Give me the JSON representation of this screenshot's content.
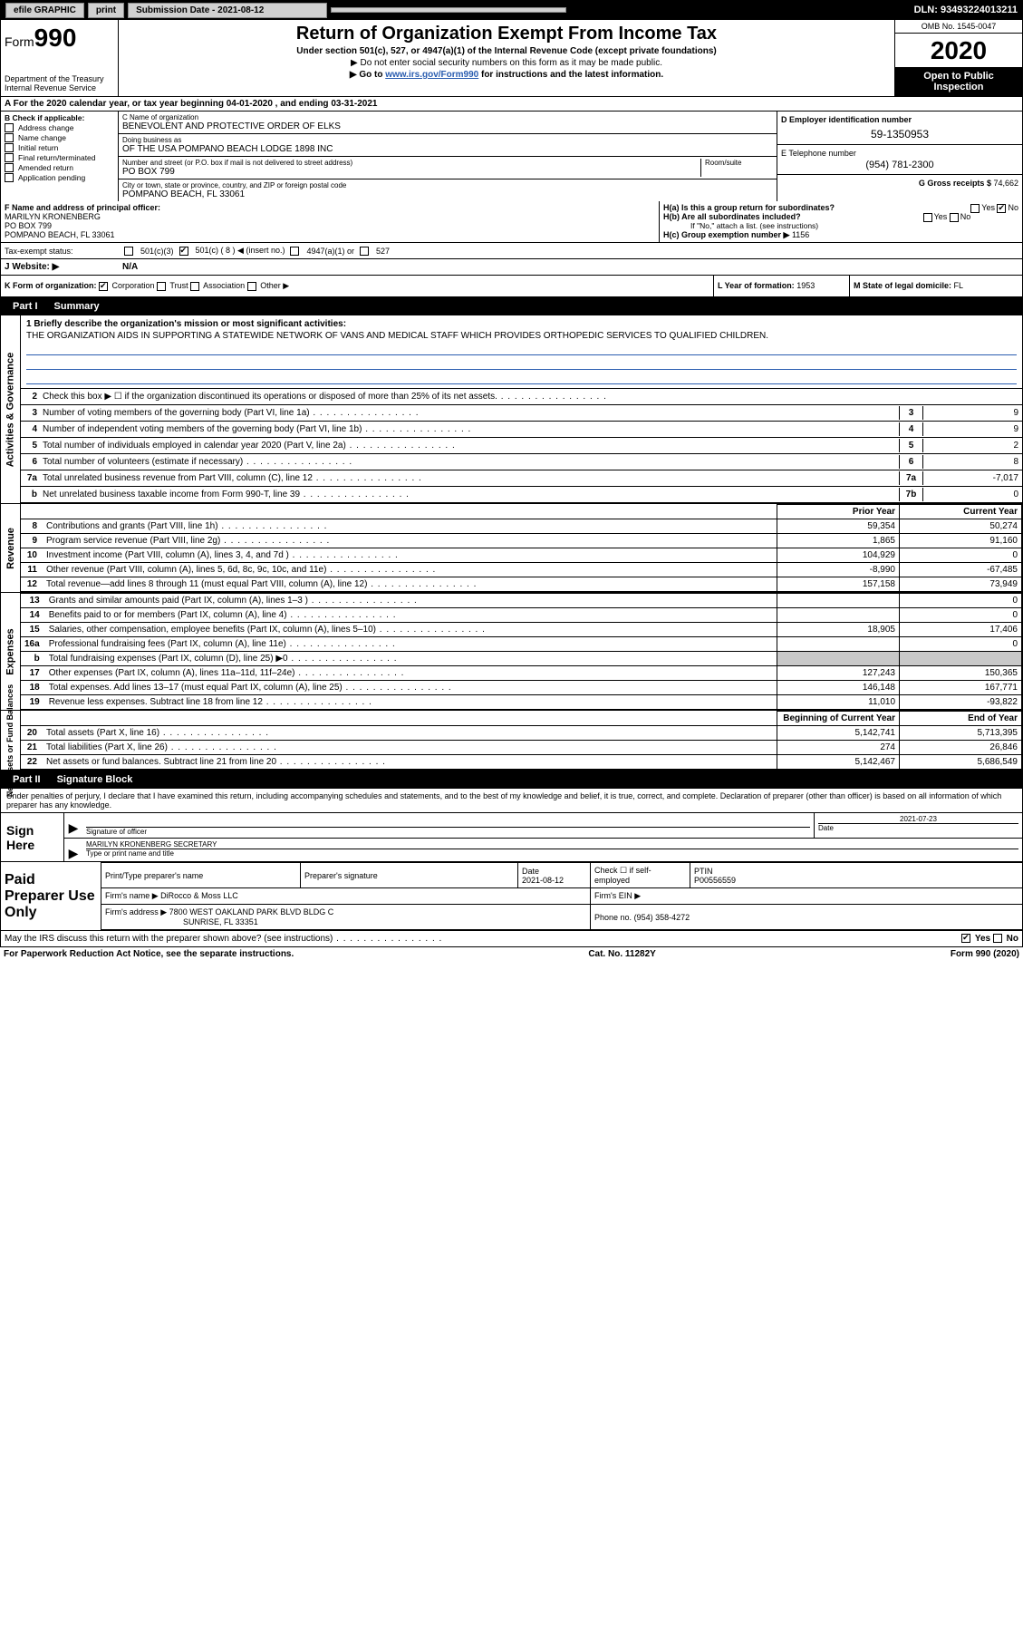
{
  "topbar": {
    "efile": "efile GRAPHIC",
    "print": "print",
    "sub_label": "Submission Date - 2021-08-12",
    "dln": "DLN: 93493224013211"
  },
  "header": {
    "form": "Form",
    "form_num": "990",
    "dept": "Department of the Treasury",
    "irs": "Internal Revenue Service",
    "title": "Return of Organization Exempt From Income Tax",
    "sub1": "Under section 501(c), 527, or 4947(a)(1) of the Internal Revenue Code (except private foundations)",
    "sub2": "▶ Do not enter social security numbers on this form as it may be made public.",
    "sub3_pre": "▶ Go to ",
    "sub3_link": "www.irs.gov/Form990",
    "sub3_post": " for instructions and the latest information.",
    "omb": "OMB No. 1545-0047",
    "year": "2020",
    "inspect1": "Open to Public",
    "inspect2": "Inspection"
  },
  "taxyear": "A For the 2020 calendar year, or tax year beginning 04-01-2020   , and ending 03-31-2021",
  "colB": {
    "title": "B Check if applicable:",
    "items": [
      "Address change",
      "Name change",
      "Initial return",
      "Final return/terminated",
      "Amended return",
      "Application pending"
    ]
  },
  "colC": {
    "name_lbl": "C Name of organization",
    "name": "BENEVOLENT AND PROTECTIVE ORDER OF ELKS",
    "dba_lbl": "Doing business as",
    "dba": "OF THE USA POMPANO BEACH LODGE 1898 INC",
    "addr_lbl": "Number and street (or P.O. box if mail is not delivered to street address)",
    "room_lbl": "Room/suite",
    "addr": "PO BOX 799",
    "city_lbl": "City or town, state or province, country, and ZIP or foreign postal code",
    "city": "POMPANO BEACH, FL  33061"
  },
  "colDE": {
    "d_lbl": "D Employer identification number",
    "d_val": "59-1350953",
    "e_lbl": "E Telephone number",
    "e_val": "(954) 781-2300",
    "g_lbl": "G Gross receipts $",
    "g_val": "74,662"
  },
  "fgh": {
    "f_lbl": "F Name and address of principal officer:",
    "f_name": "MARILYN KRONENBERG",
    "f_addr1": "PO BOX 799",
    "f_addr2": "POMPANO BEACH, FL  33061",
    "ha_lbl": "H(a)  Is this a group return for subordinates?",
    "ha_yes": "Yes",
    "ha_no": "No",
    "hb_lbl": "H(b)  Are all subordinates included?",
    "hb_note": "If \"No,\" attach a list. (see instructions)",
    "hc_lbl": "H(c)  Group exemption number ▶",
    "hc_val": "1156"
  },
  "taxexempt": {
    "lbl": "Tax-exempt status:",
    "c3": "501(c)(3)",
    "c_ins": "501(c) ( 8 ) ◀ (insert no.)",
    "a1": "4947(a)(1) or",
    "527": "527"
  },
  "website": {
    "lbl": "J  Website: ▶",
    "val": "N/A"
  },
  "klm": {
    "k_lbl": "K Form of organization:",
    "k_corp": "Corporation",
    "k_trust": "Trust",
    "k_assoc": "Association",
    "k_other": "Other ▶",
    "l_lbl": "L Year of formation:",
    "l_val": "1953",
    "m_lbl": "M State of legal domicile:",
    "m_val": "FL"
  },
  "parts": {
    "p1": "Part I",
    "p1_title": "Summary",
    "p2": "Part II",
    "p2_title": "Signature Block"
  },
  "rot_labels": {
    "act": "Activities & Governance",
    "rev": "Revenue",
    "exp": "Expenses",
    "net": "Net Assets or\nFund Balances"
  },
  "mission": {
    "lbl": "1  Briefly describe the organization's mission or most significant activities:",
    "text": "THE ORGANIZATION AIDS IN SUPPORTING A STATEWIDE NETWORK OF VANS AND MEDICAL STAFF WHICH PROVIDES ORTHOPEDIC SERVICES TO QUALIFIED CHILDREN."
  },
  "lines_act": [
    {
      "n": "2",
      "d": "Check this box ▶ ☐  if the organization discontinued its operations or disposed of more than 25% of its net assets.",
      "box": "",
      "val": ""
    },
    {
      "n": "3",
      "d": "Number of voting members of the governing body (Part VI, line 1a)",
      "box": "3",
      "val": "9"
    },
    {
      "n": "4",
      "d": "Number of independent voting members of the governing body (Part VI, line 1b)",
      "box": "4",
      "val": "9"
    },
    {
      "n": "5",
      "d": "Total number of individuals employed in calendar year 2020 (Part V, line 2a)",
      "box": "5",
      "val": "2"
    },
    {
      "n": "6",
      "d": "Total number of volunteers (estimate if necessary)",
      "box": "6",
      "val": "8"
    },
    {
      "n": "7a",
      "d": "Total unrelated business revenue from Part VIII, column (C), line 12",
      "box": "7a",
      "val": "-7,017"
    },
    {
      "n": "b",
      "d": "Net unrelated business taxable income from Form 990-T, line 39",
      "box": "7b",
      "val": "0"
    }
  ],
  "fin_headers": {
    "py": "Prior Year",
    "cy": "Current Year"
  },
  "rev_rows": [
    {
      "n": "8",
      "d": "Contributions and grants (Part VIII, line 1h)",
      "py": "59,354",
      "cy": "50,274"
    },
    {
      "n": "9",
      "d": "Program service revenue (Part VIII, line 2g)",
      "py": "1,865",
      "cy": "91,160"
    },
    {
      "n": "10",
      "d": "Investment income (Part VIII, column (A), lines 3, 4, and 7d )",
      "py": "104,929",
      "cy": "0"
    },
    {
      "n": "11",
      "d": "Other revenue (Part VIII, column (A), lines 5, 6d, 8c, 9c, 10c, and 11e)",
      "py": "-8,990",
      "cy": "-67,485"
    },
    {
      "n": "12",
      "d": "Total revenue—add lines 8 through 11 (must equal Part VIII, column (A), line 12)",
      "py": "157,158",
      "cy": "73,949"
    }
  ],
  "exp_rows": [
    {
      "n": "13",
      "d": "Grants and similar amounts paid (Part IX, column (A), lines 1–3 )",
      "py": "",
      "cy": "0"
    },
    {
      "n": "14",
      "d": "Benefits paid to or for members (Part IX, column (A), line 4)",
      "py": "",
      "cy": "0"
    },
    {
      "n": "15",
      "d": "Salaries, other compensation, employee benefits (Part IX, column (A), lines 5–10)",
      "py": "18,905",
      "cy": "17,406"
    },
    {
      "n": "16a",
      "d": "Professional fundraising fees (Part IX, column (A), line 11e)",
      "py": "",
      "cy": "0"
    },
    {
      "n": "b",
      "d": "Total fundraising expenses (Part IX, column (D), line 25) ▶0",
      "py": "GREY",
      "cy": "GREY"
    },
    {
      "n": "17",
      "d": "Other expenses (Part IX, column (A), lines 11a–11d, 11f–24e)",
      "py": "127,243",
      "cy": "150,365"
    },
    {
      "n": "18",
      "d": "Total expenses. Add lines 13–17 (must equal Part IX, column (A), line 25)",
      "py": "146,148",
      "cy": "167,771"
    },
    {
      "n": "19",
      "d": "Revenue less expenses. Subtract line 18 from line 12",
      "py": "11,010",
      "cy": "-93,822"
    }
  ],
  "net_headers": {
    "beg": "Beginning of Current Year",
    "end": "End of Year"
  },
  "net_rows": [
    {
      "n": "20",
      "d": "Total assets (Part X, line 16)",
      "py": "5,142,741",
      "cy": "5,713,395"
    },
    {
      "n": "21",
      "d": "Total liabilities (Part X, line 26)",
      "py": "274",
      "cy": "26,846"
    },
    {
      "n": "22",
      "d": "Net assets or fund balances. Subtract line 21 from line 20",
      "py": "5,142,467",
      "cy": "5,686,549"
    }
  ],
  "sig": {
    "declare": "Under penalties of perjury, I declare that I have examined this return, including accompanying schedules and statements, and to the best of my knowledge and belief, it is true, correct, and complete. Declaration of preparer (other than officer) is based on all information of which preparer has any knowledge.",
    "sign_here": "Sign Here",
    "sig_of_officer": "Signature of officer",
    "date_lbl": "Date",
    "date_val": "2021-07-23",
    "name_title": "MARILYN KRONENBERG SECRETARY",
    "type_lbl": "Type or print name and title"
  },
  "prep": {
    "label": "Paid Preparer Use Only",
    "print_name_lbl": "Print/Type preparer's name",
    "prep_sig_lbl": "Preparer's signature",
    "date_lbl": "Date",
    "date_val": "2021-08-12",
    "check_lbl": "Check ☐ if self-employed",
    "ptin_lbl": "PTIN",
    "ptin_val": "P00556559",
    "firm_name_lbl": "Firm's name   ▶",
    "firm_name": "DiRocco & Moss LLC",
    "firm_ein_lbl": "Firm's EIN ▶",
    "firm_addr_lbl": "Firm's address ▶",
    "firm_addr": "7800 WEST OAKLAND PARK BLVD BLDG C",
    "firm_city": "SUNRISE, FL  33351",
    "firm_phone_lbl": "Phone no.",
    "firm_phone": "(954) 358-4272"
  },
  "discuss": {
    "q": "May the IRS discuss this return with the preparer shown above? (see instructions)",
    "yes": "Yes",
    "no": "No"
  },
  "footer": {
    "left": "For Paperwork Reduction Act Notice, see the separate instructions.",
    "mid": "Cat. No. 11282Y",
    "right": "Form 990 (2020)"
  }
}
